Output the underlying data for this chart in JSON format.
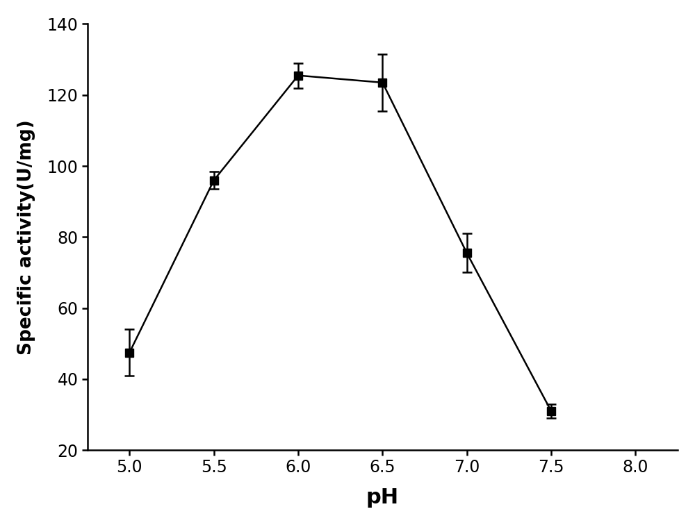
{
  "x": [
    5.0,
    5.5,
    6.0,
    6.5,
    7.0,
    7.5
  ],
  "y": [
    47.5,
    96.0,
    125.5,
    123.5,
    75.5,
    31.0
  ],
  "yerr": [
    6.5,
    2.5,
    3.5,
    8.0,
    5.5,
    2.0
  ],
  "xlabel": "pH",
  "ylabel": "Specific activity(U/mg)",
  "xlim": [
    4.75,
    8.25
  ],
  "ylim": [
    20,
    140
  ],
  "xticks": [
    5.0,
    5.5,
    6.0,
    6.5,
    7.0,
    7.5,
    8.0
  ],
  "yticks": [
    20,
    40,
    60,
    80,
    100,
    120,
    140
  ],
  "marker": "-s",
  "marker_color": "black",
  "line_color": "black",
  "marker_size": 8,
  "line_width": 1.8,
  "capsize": 5,
  "elinewidth": 1.8,
  "background_color": "#ffffff",
  "tick_fontsize": 17,
  "xlabel_fontsize": 22,
  "ylabel_fontsize": 19,
  "spine_linewidth": 1.8
}
